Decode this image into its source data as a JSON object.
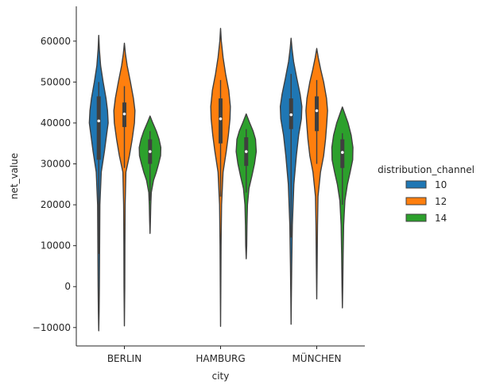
{
  "chart_data": {
    "type": "violin",
    "title": "",
    "xlabel": "city",
    "ylabel": "net_value",
    "categories": [
      "BERLIN",
      "HAMBURG",
      "MÜNCHEN"
    ],
    "ylim": [
      -14500,
      68500
    ],
    "yticks": [
      -10000,
      0,
      10000,
      20000,
      30000,
      40000,
      50000,
      60000
    ],
    "ytick_labels": [
      "−10000",
      "0",
      "10000",
      "20000",
      "30000",
      "40000",
      "50000",
      "60000"
    ],
    "legend": {
      "title": "distribution_channel",
      "placement": "right"
    },
    "series": [
      {
        "name": "10",
        "color": "#1f77b4",
        "violins": [
          {
            "category": "BERLIN",
            "min": -10800,
            "max": 61400,
            "median": 40500,
            "q1": 31000,
            "q3": 46500,
            "whisker_low": 8000,
            "whisker_high": 50000,
            "profile": [
              [
                -10800,
                0.0
              ],
              [
                -6000,
                0.03
              ],
              [
                0,
                0.05
              ],
              [
                10000,
                0.07
              ],
              [
                20000,
                0.09
              ],
              [
                28000,
                0.2
              ],
              [
                33000,
                0.45
              ],
              [
                37000,
                0.62
              ],
              [
                40000,
                0.75
              ],
              [
                43000,
                0.7
              ],
              [
                46000,
                0.58
              ],
              [
                50000,
                0.35
              ],
              [
                54000,
                0.15
              ],
              [
                58000,
                0.05
              ],
              [
                61400,
                0.0
              ]
            ]
          },
          null,
          {
            "category": "MÜNCHEN",
            "min": -9200,
            "max": 60700,
            "median": 42000,
            "q1": 38500,
            "q3": 46000,
            "whisker_low": 12000,
            "whisker_high": 52000,
            "profile": [
              [
                -9200,
                0.0
              ],
              [
                -3000,
                0.02
              ],
              [
                5000,
                0.05
              ],
              [
                15000,
                0.1
              ],
              [
                25000,
                0.22
              ],
              [
                32000,
                0.42
              ],
              [
                37000,
                0.6
              ],
              [
                41000,
                0.82
              ],
              [
                44000,
                0.86
              ],
              [
                47000,
                0.72
              ],
              [
                51000,
                0.45
              ],
              [
                55000,
                0.2
              ],
              [
                58000,
                0.08
              ],
              [
                60700,
                0.0
              ]
            ]
          }
        ]
      },
      {
        "name": "12",
        "color": "#ff7f0e",
        "violins": [
          {
            "category": "BERLIN",
            "min": -9600,
            "max": 59500,
            "median": 42200,
            "q1": 39000,
            "q3": 45000,
            "whisker_low": 29000,
            "whisker_high": 49000,
            "profile": [
              [
                -9600,
                0.0
              ],
              [
                0,
                0.03
              ],
              [
                10000,
                0.04
              ],
              [
                20000,
                0.06
              ],
              [
                28000,
                0.12
              ],
              [
                32000,
                0.4
              ],
              [
                36000,
                0.62
              ],
              [
                40000,
                0.8
              ],
              [
                43000,
                0.84
              ],
              [
                46000,
                0.72
              ],
              [
                50000,
                0.48
              ],
              [
                54000,
                0.22
              ],
              [
                57000,
                0.08
              ],
              [
                59500,
                0.0
              ]
            ]
          },
          {
            "category": "HAMBURG",
            "min": -9700,
            "max": 63100,
            "median": 41000,
            "q1": 35000,
            "q3": 46000,
            "whisker_low": 22000,
            "whisker_high": 50500,
            "profile": [
              [
                -9700,
                0.0
              ],
              [
                0,
                0.02
              ],
              [
                10000,
                0.04
              ],
              [
                20000,
                0.08
              ],
              [
                28000,
                0.2
              ],
              [
                33000,
                0.45
              ],
              [
                37000,
                0.62
              ],
              [
                41000,
                0.75
              ],
              [
                44000,
                0.78
              ],
              [
                48000,
                0.65
              ],
              [
                52000,
                0.4
              ],
              [
                56000,
                0.2
              ],
              [
                60000,
                0.06
              ],
              [
                63100,
                0.0
              ]
            ]
          },
          {
            "category": "MÜNCHEN",
            "min": -3000,
            "max": 58200,
            "median": 43000,
            "q1": 38000,
            "q3": 46500,
            "whisker_low": 30000,
            "whisker_high": 50500,
            "profile": [
              [
                -3000,
                0.0
              ],
              [
                5000,
                0.03
              ],
              [
                15000,
                0.06
              ],
              [
                22000,
                0.1
              ],
              [
                28000,
                0.3
              ],
              [
                32000,
                0.55
              ],
              [
                36000,
                0.7
              ],
              [
                40000,
                0.8
              ],
              [
                43000,
                0.86
              ],
              [
                46000,
                0.78
              ],
              [
                50000,
                0.55
              ],
              [
                53000,
                0.32
              ],
              [
                56000,
                0.12
              ],
              [
                58200,
                0.0
              ]
            ]
          }
        ]
      },
      {
        "name": "14",
        "color": "#2ca02c",
        "violins": [
          {
            "category": "BERLIN",
            "min": 13000,
            "max": 41700,
            "median": 33000,
            "q1": 30000,
            "q3": 36000,
            "whisker_low": 21000,
            "whisker_high": 38000,
            "profile": [
              [
                13000,
                0.0
              ],
              [
                16000,
                0.03
              ],
              [
                20000,
                0.06
              ],
              [
                23000,
                0.1
              ],
              [
                26000,
                0.28
              ],
              [
                28000,
                0.5
              ],
              [
                30000,
                0.68
              ],
              [
                32000,
                0.84
              ],
              [
                34000,
                0.86
              ],
              [
                36000,
                0.72
              ],
              [
                38000,
                0.5
              ],
              [
                40000,
                0.22
              ],
              [
                41700,
                0.0
              ]
            ]
          },
          {
            "category": "HAMBURG",
            "min": 6800,
            "max": 42200,
            "median": 33000,
            "q1": 29500,
            "q3": 36500,
            "whisker_low": 23000,
            "whisker_high": 38500,
            "profile": [
              [
                6800,
                0.0
              ],
              [
                10000,
                0.04
              ],
              [
                15000,
                0.06
              ],
              [
                20000,
                0.1
              ],
              [
                24000,
                0.22
              ],
              [
                27000,
                0.45
              ],
              [
                30000,
                0.66
              ],
              [
                33000,
                0.8
              ],
              [
                36000,
                0.74
              ],
              [
                38000,
                0.55
              ],
              [
                40000,
                0.28
              ],
              [
                42200,
                0.0
              ]
            ]
          },
          {
            "category": "MÜNCHEN",
            "min": -5200,
            "max": 43900,
            "median": 32800,
            "q1": 29000,
            "q3": 36000,
            "whisker_low": 20000,
            "whisker_high": 37500,
            "profile": [
              [
                -5200,
                0.0
              ],
              [
                0,
                0.03
              ],
              [
                8000,
                0.06
              ],
              [
                15000,
                0.1
              ],
              [
                21000,
                0.2
              ],
              [
                25000,
                0.4
              ],
              [
                28000,
                0.62
              ],
              [
                31000,
                0.82
              ],
              [
                34000,
                0.84
              ],
              [
                37000,
                0.7
              ],
              [
                40000,
                0.45
              ],
              [
                42000,
                0.22
              ],
              [
                43900,
                0.0
              ]
            ]
          }
        ]
      }
    ]
  }
}
